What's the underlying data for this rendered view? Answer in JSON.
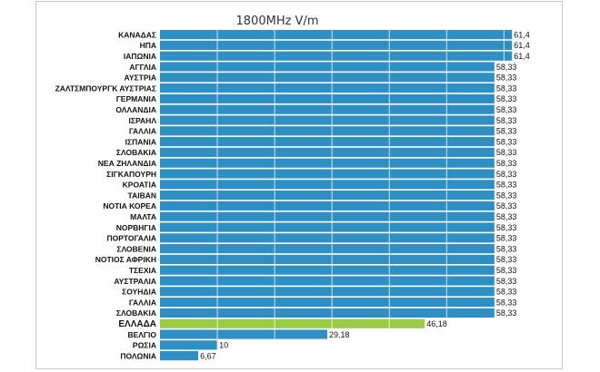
{
  "chart_data": {
    "type": "bar",
    "orientation": "horizontal",
    "title": "1800MHz V/m",
    "xlabel": "",
    "ylabel": "",
    "xlim": [
      0,
      62
    ],
    "grid": true,
    "legend": "none",
    "colors": {
      "default": "#2f8fc3",
      "highlight": "#9ccc46"
    },
    "highlight_category": "ΕΛΛΑΔΑ",
    "categories": [
      "ΚΑΝΑΔΑΣ",
      "ΗΠΑ",
      "ΙΑΠΩΝΙΑ",
      "ΑΓΓΛΙΑ",
      "ΑΥΣΤΡΙΑ",
      "ΖΑΛΤΣΜΠΟΥΡΓΚ ΑΥΣΤΡΙΑΣ",
      "ΓΕΡΜΑΝΙΑ",
      "ΟΛΛΑΝΔΙΑ",
      "ΙΣΡΑΗΛ",
      "ΓΑΛΛΙΑ",
      "ΙΣΠΑΝΙΑ",
      "ΣΛΟΒΑΚΙΑ",
      "ΝΕΑ ΖΗΛΑΝΔΙΑ",
      "ΣΙΓΚΑΠΟΥΡΗ",
      "ΚΡΟΑΤΙΑ",
      "ΤΑΙΒΑΝ",
      "ΝΟΤΙΑ ΚΟΡΕΑ",
      "ΜΑΛΤΑ",
      "ΝΟΡΒΗΓΙΑ",
      "ΠΟΡΤΟΓΑΛΙΑ",
      "ΣΛΟΒΕΝΙΑ",
      "ΝΟΤΙΟΣ ΑΦΡΙΚΗ",
      "ΤΣΕΧΙΑ",
      "ΑΥΣΤΡΑΛΙΑ",
      "ΣΟΥΗΔΙΑ",
      "ΓΑΛΛΙΑ",
      "ΣΛΟΒΑΚΙΑ",
      "ΕΛΛΑΔΑ",
      "ΒΕΛΓΙΟ",
      "ΡΩΣΙΑ",
      "ΠΟΛΩΝΙΑ"
    ],
    "values": [
      61.4,
      61.4,
      61.4,
      58.33,
      58.33,
      58.33,
      58.33,
      58.33,
      58.33,
      58.33,
      58.33,
      58.33,
      58.33,
      58.33,
      58.33,
      58.33,
      58.33,
      58.33,
      58.33,
      58.33,
      58.33,
      58.33,
      58.33,
      58.33,
      58.33,
      58.33,
      58.33,
      46.18,
      29.18,
      10,
      6.67
    ],
    "value_labels": [
      "61,4",
      "61,4",
      "61,4",
      "58,33",
      "58,33",
      "58,33",
      "58,33",
      "58,33",
      "58,33",
      "58,33",
      "58,33",
      "58,33",
      "58,33",
      "58,33",
      "58,33",
      "58,33",
      "58,33",
      "58,33",
      "58,33",
      "58,33",
      "58,33",
      "58,33",
      "58,33",
      "58,33",
      "58,33",
      "58,33",
      "58,33",
      "46,18",
      "29,18",
      "10",
      "6,67"
    ]
  }
}
